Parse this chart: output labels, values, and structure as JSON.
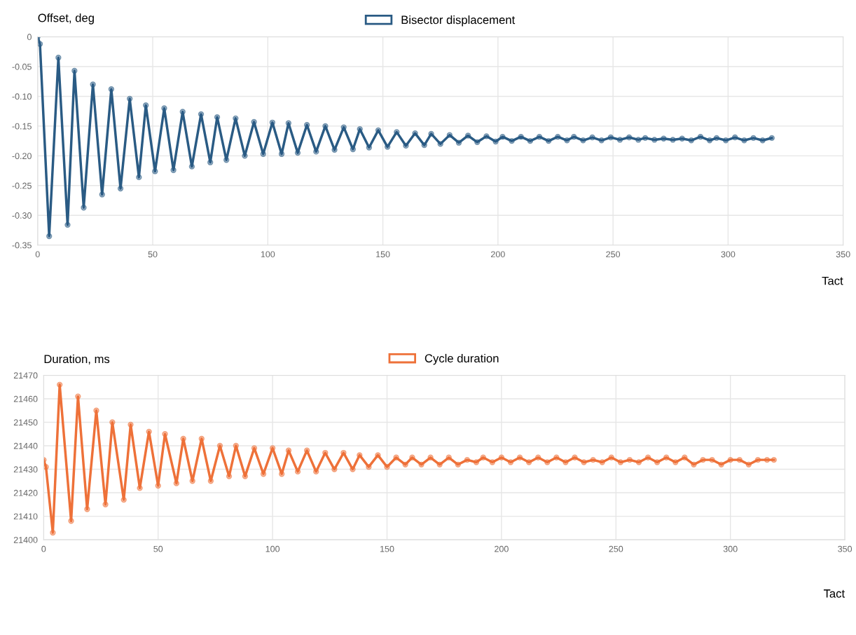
{
  "chart_data": [
    {
      "type": "line",
      "ylabel": "Offset, deg",
      "xlabel": "Tact",
      "legend": "top",
      "grid": true,
      "marker": "circle",
      "line_style": "solid",
      "xlim": [
        0,
        350
      ],
      "xticks": [
        0,
        50,
        100,
        150,
        200,
        250,
        300,
        350
      ],
      "ylim": [
        -0.35,
        0
      ],
      "yticks": [
        {
          "value": -0.35,
          "label": "-0.35"
        },
        {
          "value": -0.3,
          "label": "-0.30"
        },
        {
          "value": -0.25,
          "label": "-0.25"
        },
        {
          "value": -0.2,
          "label": "-0.20"
        },
        {
          "value": -0.15,
          "label": "-0.15"
        },
        {
          "value": -0.1,
          "label": "-0.10"
        },
        {
          "value": -0.05,
          "label": "-0.05"
        },
        0
      ],
      "series": [
        {
          "name": "Bisector displacement",
          "color": "#2a5b84",
          "x": [
            0,
            1,
            5,
            9,
            13,
            16,
            20,
            24,
            28,
            32,
            36,
            40,
            44,
            47,
            51,
            55,
            59,
            63,
            67,
            71,
            75,
            78,
            82,
            86,
            90,
            94,
            98,
            102,
            106,
            109,
            113,
            117,
            121,
            125,
            129,
            133,
            137,
            140,
            144,
            148,
            152,
            156,
            160,
            164,
            168,
            171,
            175,
            179,
            183,
            187,
            191,
            195,
            199,
            202,
            206,
            210,
            214,
            218,
            222,
            226,
            230,
            233,
            237,
            241,
            245,
            249,
            253,
            257,
            261,
            264,
            268,
            272,
            276,
            280,
            284,
            288,
            292,
            295,
            299,
            303,
            307,
            311,
            315,
            319
          ],
          "values": [
            0,
            -0.012,
            -0.335,
            -0.035,
            -0.316,
            -0.057,
            -0.287,
            -0.08,
            -0.265,
            -0.088,
            -0.255,
            -0.104,
            -0.236,
            -0.115,
            -0.226,
            -0.12,
            -0.224,
            -0.126,
            -0.218,
            -0.13,
            -0.211,
            -0.135,
            -0.207,
            -0.137,
            -0.2,
            -0.143,
            -0.197,
            -0.144,
            -0.197,
            -0.145,
            -0.195,
            -0.148,
            -0.193,
            -0.15,
            -0.19,
            -0.152,
            -0.189,
            -0.155,
            -0.186,
            -0.157,
            -0.185,
            -0.16,
            -0.183,
            -0.162,
            -0.182,
            -0.163,
            -0.18,
            -0.165,
            -0.178,
            -0.166,
            -0.177,
            -0.167,
            -0.176,
            -0.168,
            -0.175,
            -0.168,
            -0.175,
            -0.168,
            -0.175,
            -0.168,
            -0.174,
            -0.168,
            -0.174,
            -0.169,
            -0.174,
            -0.169,
            -0.173,
            -0.169,
            -0.173,
            -0.17,
            -0.173,
            -0.171,
            -0.173,
            -0.171,
            -0.174,
            -0.168,
            -0.174,
            -0.17,
            -0.174,
            -0.169,
            -0.174,
            -0.17,
            -0.174,
            -0.17
          ]
        }
      ]
    },
    {
      "type": "line",
      "ylabel": "Duration, ms",
      "xlabel": "Tact",
      "legend": "top",
      "grid": true,
      "marker": "circle",
      "line_style": "solid",
      "xlim": [
        0,
        350
      ],
      "xticks": [
        0,
        50,
        100,
        150,
        200,
        250,
        300,
        350
      ],
      "ylim": [
        21400,
        21470
      ],
      "yticks": [
        21400,
        21410,
        21420,
        21430,
        21440,
        21450,
        21460,
        21470
      ],
      "series": [
        {
          "name": "Cycle duration",
          "color": "#ee7139",
          "x": [
            0,
            1,
            4,
            7,
            12,
            15,
            19,
            23,
            27,
            30,
            35,
            38,
            42,
            46,
            50,
            53,
            58,
            61,
            65,
            69,
            73,
            77,
            81,
            84,
            88,
            92,
            96,
            100,
            104,
            107,
            111,
            115,
            119,
            123,
            127,
            131,
            135,
            138,
            142,
            146,
            150,
            154,
            158,
            161,
            165,
            169,
            173,
            177,
            181,
            185,
            189,
            192,
            196,
            200,
            204,
            208,
            212,
            216,
            220,
            224,
            228,
            232,
            236,
            240,
            244,
            248,
            252,
            256,
            260,
            264,
            268,
            272,
            276,
            280,
            284,
            288,
            292,
            296,
            300,
            304,
            308,
            312,
            316,
            319
          ],
          "values": [
            21434,
            21431,
            21403,
            21466,
            21408,
            21461,
            21413,
            21455,
            21415,
            21450,
            21417,
            21449,
            21422,
            21446,
            21423,
            21445,
            21424,
            21443,
            21425,
            21443,
            21425,
            21440,
            21427,
            21440,
            21427,
            21439,
            21428,
            21439,
            21428,
            21438,
            21429,
            21438,
            21429,
            21437,
            21430,
            21437,
            21430,
            21436,
            21431,
            21436,
            21431,
            21435,
            21432,
            21435,
            21432,
            21435,
            21432,
            21435,
            21432,
            21434,
            21433,
            21435,
            21433,
            21435,
            21433,
            21435,
            21433,
            21435,
            21433,
            21435,
            21433,
            21435,
            21433,
            21434,
            21433,
            21435,
            21433,
            21434,
            21433,
            21435,
            21433,
            21435,
            21433,
            21435,
            21432,
            21434,
            21434,
            21432,
            21434,
            21434,
            21432,
            21434,
            21434,
            21434
          ]
        }
      ]
    }
  ]
}
